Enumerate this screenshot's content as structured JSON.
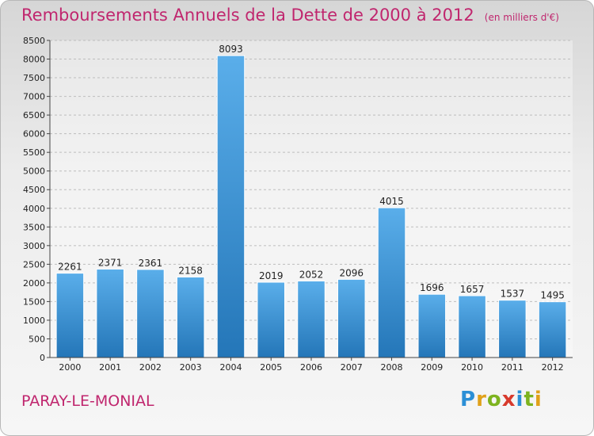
{
  "header": {
    "title": "Remboursements Annuels de la Dette de 2000 à 2012",
    "unit_note": "(en milliers d'€)"
  },
  "footer": {
    "commune": "PARAY-LE-MONIAL",
    "logo": {
      "letters": [
        {
          "char": "P",
          "color": "#2b8fd6"
        },
        {
          "char": "r",
          "color": "#e0a11a"
        },
        {
          "char": "o",
          "color": "#7db31f"
        },
        {
          "char": "x",
          "color": "#d73a2c"
        },
        {
          "char": "i",
          "color": "#2b8fd6"
        },
        {
          "char": "t",
          "color": "#7db31f"
        },
        {
          "char": "i",
          "color": "#e0a11a"
        }
      ]
    }
  },
  "chart_data": {
    "type": "bar",
    "title": "Remboursements Annuels de la Dette de 2000 à 2012",
    "subtitle": "(en milliers d'€)",
    "categories": [
      "2000",
      "2001",
      "2002",
      "2003",
      "2004",
      "2005",
      "2006",
      "2007",
      "2008",
      "2009",
      "2010",
      "2011",
      "2012"
    ],
    "values": [
      2261,
      2371,
      2361,
      2158,
      8093,
      2019,
      2052,
      2096,
      4015,
      1696,
      1657,
      1537,
      1495
    ],
    "ylim": [
      0,
      8500
    ],
    "yticks": [
      0,
      500,
      1000,
      1500,
      2000,
      2500,
      3000,
      3500,
      4000,
      4500,
      5000,
      5500,
      6000,
      6500,
      7000,
      7500,
      8000,
      8500
    ],
    "grid": true,
    "bar_color": "#3a93d8",
    "legend": "none"
  }
}
